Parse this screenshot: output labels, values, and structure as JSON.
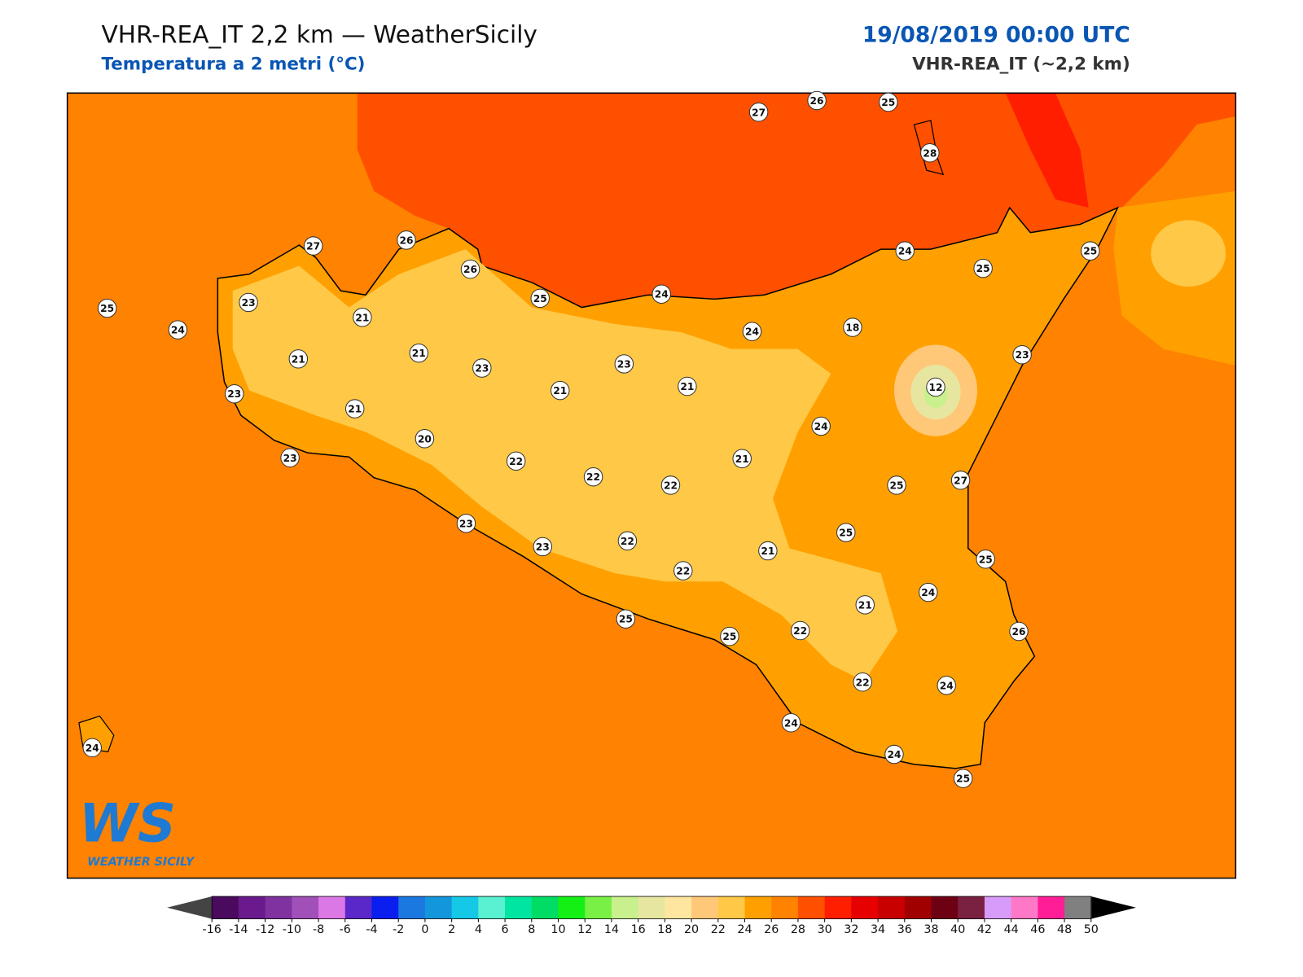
{
  "header": {
    "title": "VHR-REA_IT 2,2 km — WeatherSicily",
    "subtitle": "Temperatura a 2 metri (°C)",
    "date": "19/08/2019 00:00 UTC",
    "model": "VHR-REA_IT (~2,2 km)"
  },
  "stations": [
    27,
    26,
    25,
    28,
    27,
    26,
    26,
    25,
    24,
    23,
    21,
    25,
    24,
    24,
    25,
    25,
    21,
    21,
    23,
    23,
    24,
    18,
    23,
    23,
    21,
    21,
    21,
    12,
    20,
    24,
    23,
    22,
    22,
    22,
    21,
    25,
    27,
    23,
    23,
    22,
    25,
    21,
    25,
    22,
    21,
    24,
    22,
    25,
    25,
    26,
    22,
    24,
    24,
    24,
    25,
    24
  ],
  "colorbar": {
    "ticks": [
      -16,
      -14,
      -12,
      -10,
      -8,
      -6,
      -4,
      -2,
      0,
      2,
      4,
      6,
      8,
      10,
      12,
      14,
      16,
      18,
      20,
      22,
      24,
      26,
      28,
      30,
      32,
      34,
      36,
      38,
      40,
      42,
      44,
      46,
      48,
      50
    ],
    "colors": [
      "#4a0a5e",
      "#6a1a8c",
      "#8032a0",
      "#a050b8",
      "#dc78e6",
      "#5a28c8",
      "#0a1ef0",
      "#1a78e0",
      "#1496dc",
      "#14c8e6",
      "#5af0d2",
      "#00e6a0",
      "#00dc64",
      "#14f014",
      "#78f046",
      "#c8f08c",
      "#e6e6a0",
      "#ffe6a0",
      "#ffc878",
      "#ffc846",
      "#ffa000",
      "#ff8200",
      "#ff5000",
      "#ff1e00",
      "#e60000",
      "#c80000",
      "#a00000",
      "#6e0014",
      "#7a2040",
      "#d79bfa",
      "#ff78c8",
      "#ff1e96",
      "#808080",
      "#3c3c3c"
    ],
    "under_color": "#444444",
    "over_color": "#000000"
  },
  "logo": {
    "mark": "WS",
    "name": "WEATHER SICILY"
  }
}
